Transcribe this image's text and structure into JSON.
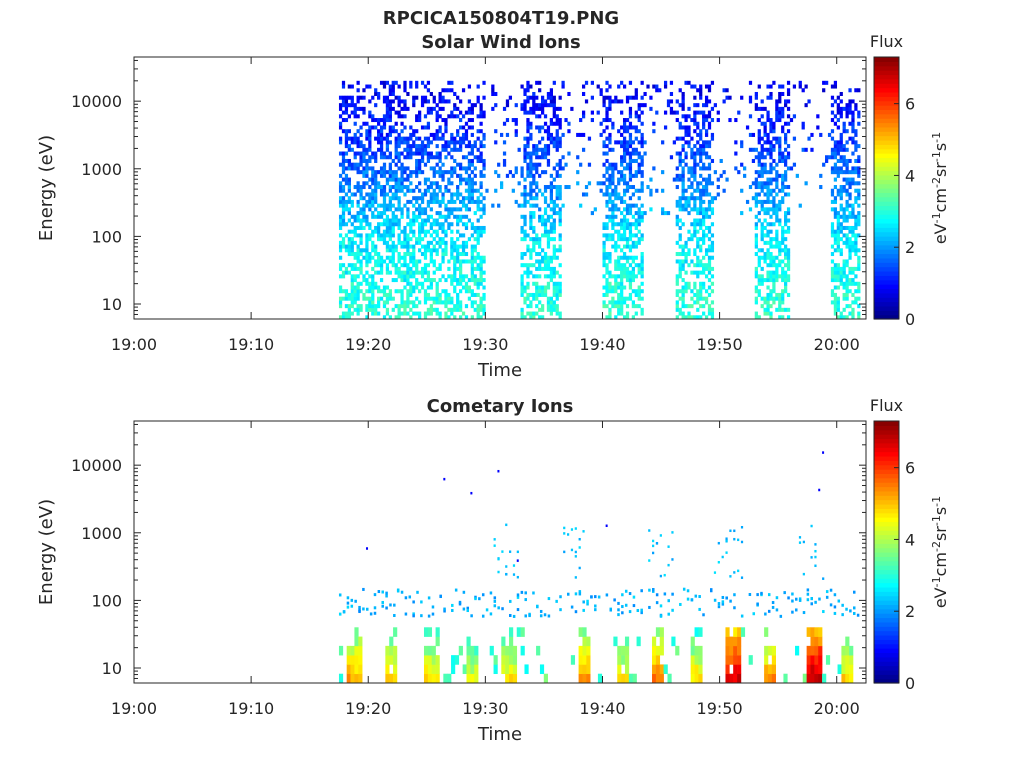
{
  "figure": {
    "title": "RPCICA150804T19.PNG"
  },
  "chart_data": [
    {
      "type": "heatmap",
      "title": "Solar Wind Ions",
      "xlabel": "Time",
      "ylabel": "Energy (eV)",
      "y_scale": "log",
      "x_ticks": [
        "19:00",
        "19:10",
        "19:20",
        "19:30",
        "19:40",
        "19:50",
        "20:00"
      ],
      "y_ticks": [
        "10",
        "100",
        "1000",
        "10000"
      ],
      "colorbar": {
        "label": "Flux",
        "unit": "eV-1cm-2sr-1s-1",
        "ticks": [
          "0",
          "2",
          "4",
          "6"
        ],
        "range": [
          0,
          7.3
        ],
        "colormap": "jet"
      },
      "active_intervals_min": [
        [
          17.5,
          30.0
        ],
        [
          32.8,
          36.4
        ],
        [
          39.9,
          43.3
        ],
        [
          46.2,
          49.3
        ],
        [
          52.8,
          56.0
        ],
        [
          59.5,
          62.0
        ]
      ],
      "sparse_intervals_min": [
        [
          30.0,
          32.8
        ],
        [
          36.4,
          39.9
        ],
        [
          43.3,
          46.2
        ],
        [
          49.3,
          52.8
        ],
        [
          56.0,
          59.5
        ]
      ],
      "typical_flux_by_energy": {
        "10": 3.0,
        "100": 2.6,
        "1000": 1.6,
        "10000": 0.9
      }
    },
    {
      "type": "heatmap",
      "title": "Cometary Ions",
      "xlabel": "Time",
      "ylabel": "Energy (eV)",
      "y_scale": "log",
      "x_ticks": [
        "19:00",
        "19:10",
        "19:20",
        "19:30",
        "19:40",
        "19:50",
        "20:00"
      ],
      "y_ticks": [
        "10",
        "100",
        "1000",
        "10000"
      ],
      "colorbar": {
        "label": "Flux",
        "unit": "eV-1cm-2sr-1s-1",
        "ticks": [
          "0",
          "2",
          "4",
          "6"
        ],
        "range": [
          0,
          7.3
        ],
        "colormap": "jet"
      },
      "bright_bursts_min": [
        {
          "t": 18.6,
          "flux": 5.2
        },
        {
          "t": 21.8,
          "flux": 5.0
        },
        {
          "t": 25.3,
          "flux": 4.8
        },
        {
          "t": 28.7,
          "flux": 4.4
        },
        {
          "t": 31.9,
          "flux": 4.7
        },
        {
          "t": 38.3,
          "flux": 5.3
        },
        {
          "t": 41.5,
          "flux": 4.6
        },
        {
          "t": 44.6,
          "flux": 5.6
        },
        {
          "t": 47.8,
          "flux": 4.8
        },
        {
          "t": 51.0,
          "flux": 6.6
        },
        {
          "t": 54.2,
          "flux": 5.3
        },
        {
          "t": 57.9,
          "flux": 6.9
        },
        {
          "t": 60.8,
          "flux": 4.8
        }
      ],
      "mid_energy_clusters_min": [
        [
          30.5,
          33.0
        ],
        [
          36.5,
          38.5
        ],
        [
          43.5,
          46.0
        ],
        [
          49.5,
          52.0
        ],
        [
          56.5,
          59.0
        ]
      ],
      "typical_flux_by_energy": {
        "10": 4.5,
        "100": 2.3,
        "1000": 2.2
      }
    }
  ]
}
